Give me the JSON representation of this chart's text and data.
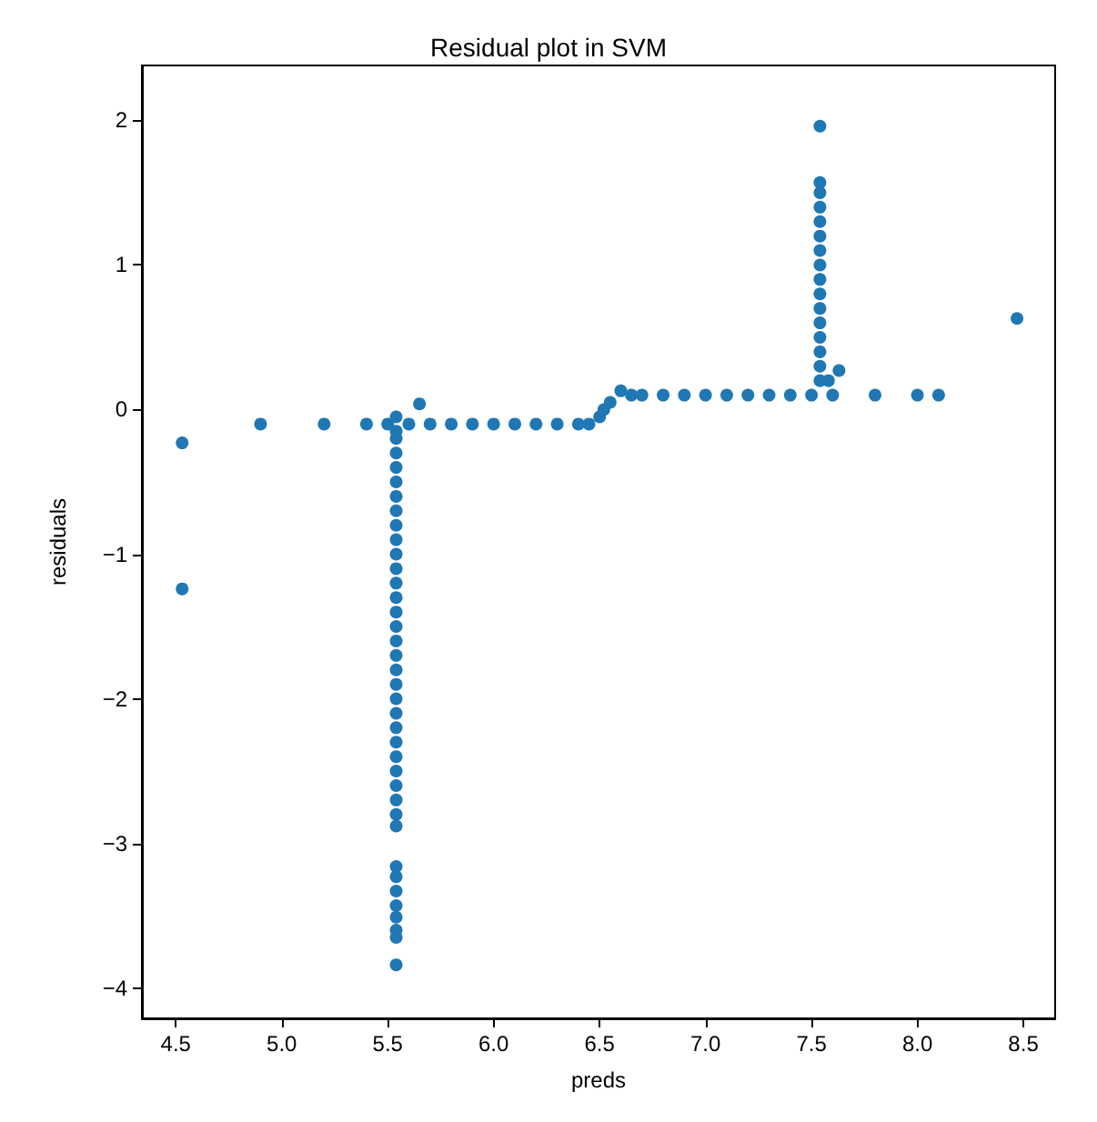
{
  "chart_data": {
    "type": "scatter",
    "title": "Residual plot in SVM",
    "xlabel": "preds",
    "ylabel": "residuals",
    "x": [
      4.53,
      4.53,
      4.9,
      5.2,
      5.4,
      5.5,
      5.54,
      5.54,
      5.54,
      5.54,
      5.54,
      5.54,
      5.54,
      5.54,
      5.54,
      5.54,
      5.54,
      5.54,
      5.54,
      5.54,
      5.54,
      5.54,
      5.54,
      5.54,
      5.54,
      5.54,
      5.54,
      5.54,
      5.54,
      5.54,
      5.54,
      5.54,
      5.54,
      5.54,
      5.54,
      5.54,
      5.54,
      5.54,
      5.54,
      5.54,
      5.54,
      5.54,
      5.54,
      5.54,
      5.6,
      5.65,
      5.7,
      5.8,
      5.9,
      6.0,
      6.1,
      6.2,
      6.3,
      6.4,
      6.45,
      6.5,
      6.52,
      6.55,
      6.6,
      6.65,
      6.7,
      6.8,
      6.9,
      7.0,
      7.1,
      7.2,
      7.3,
      7.4,
      7.5,
      7.54,
      7.54,
      7.54,
      7.54,
      7.54,
      7.54,
      7.54,
      7.54,
      7.54,
      7.54,
      7.54,
      7.54,
      7.54,
      7.54,
      7.54,
      7.54,
      7.58,
      7.6,
      7.63,
      7.8,
      8.0,
      8.1,
      8.47
    ],
    "values": [
      -0.23,
      -1.24,
      -0.1,
      -0.1,
      -0.1,
      -0.1,
      -0.05,
      -0.15,
      -0.2,
      -0.3,
      -0.4,
      -0.5,
      -0.6,
      -0.7,
      -0.8,
      -0.9,
      -1.0,
      -1.1,
      -1.2,
      -1.3,
      -1.4,
      -1.5,
      -1.6,
      -1.7,
      -1.8,
      -1.9,
      -2.0,
      -2.1,
      -2.2,
      -2.3,
      -2.4,
      -2.5,
      -2.6,
      -2.7,
      -2.8,
      -2.88,
      -3.16,
      -3.23,
      -3.33,
      -3.43,
      -3.51,
      -3.6,
      -3.65,
      -3.84,
      -0.1,
      0.04,
      -0.1,
      -0.1,
      -0.1,
      -0.1,
      -0.1,
      -0.1,
      -0.1,
      -0.1,
      -0.1,
      -0.05,
      0.0,
      0.05,
      0.13,
      0.1,
      0.1,
      0.1,
      0.1,
      0.1,
      0.1,
      0.1,
      0.1,
      0.1,
      0.1,
      0.2,
      0.3,
      0.4,
      0.5,
      0.6,
      0.7,
      0.8,
      0.9,
      1.0,
      1.1,
      1.2,
      1.3,
      1.4,
      1.5,
      1.57,
      1.96,
      0.2,
      0.1,
      0.27,
      0.1,
      0.1,
      0.1,
      0.63
    ],
    "color": "#1f77b4",
    "marker": "circle",
    "xlim": [
      4.34,
      8.65
    ],
    "ylim": [
      -4.21,
      2.38
    ],
    "xticks": [
      4.5,
      {
        "value": 5,
        "label": "5.0"
      },
      5.5,
      {
        "value": 6,
        "label": "6.0"
      },
      6.5,
      {
        "value": 7,
        "label": "7.0"
      },
      7.5,
      {
        "value": 8,
        "label": "8.0"
      },
      8.5
    ],
    "yticks": [
      {
        "value": -4,
        "label": "−4"
      },
      {
        "value": -3,
        "label": "−3"
      },
      {
        "value": -2,
        "label": "−2"
      },
      {
        "value": -1,
        "label": "−1"
      },
      0,
      1,
      2
    ]
  }
}
